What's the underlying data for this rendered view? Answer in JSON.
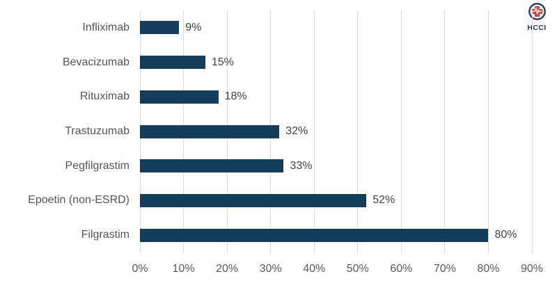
{
  "chart_data": {
    "type": "bar",
    "orientation": "horizontal",
    "title": "",
    "categories": [
      "Infliximab",
      "Bevacizumab",
      "Rituximab",
      "Trastuzumab",
      "Pegfilgrastim",
      "Epoetin (non-ESRD)",
      "Filgrastim"
    ],
    "values": [
      9,
      15,
      18,
      32,
      33,
      52,
      80
    ],
    "data_labels": [
      "9%",
      "15%",
      "18%",
      "32%",
      "33%",
      "52%",
      "80%"
    ],
    "x_ticks": [
      "0%",
      "10%",
      "20%",
      "30%",
      "40%",
      "50%",
      "60%",
      "70%",
      "80%",
      "90%"
    ],
    "xlabel": "",
    "ylabel": "",
    "xlim": [
      0,
      90
    ],
    "grid": true,
    "legend": "none",
    "colors": {
      "bar": "#133d5d",
      "gridline": "#d9d9d9",
      "category_text": "#545454",
      "tick_text": "#595959",
      "data_label_text": "#3f3f3f",
      "background": "#ffffff"
    }
  },
  "logo": {
    "text": "HCCI",
    "colors": {
      "ring": "#203864",
      "fill": "#f2f2f4",
      "cross": "#de3a2e",
      "pulse_line": "#ffffff",
      "text": "#203864"
    }
  }
}
